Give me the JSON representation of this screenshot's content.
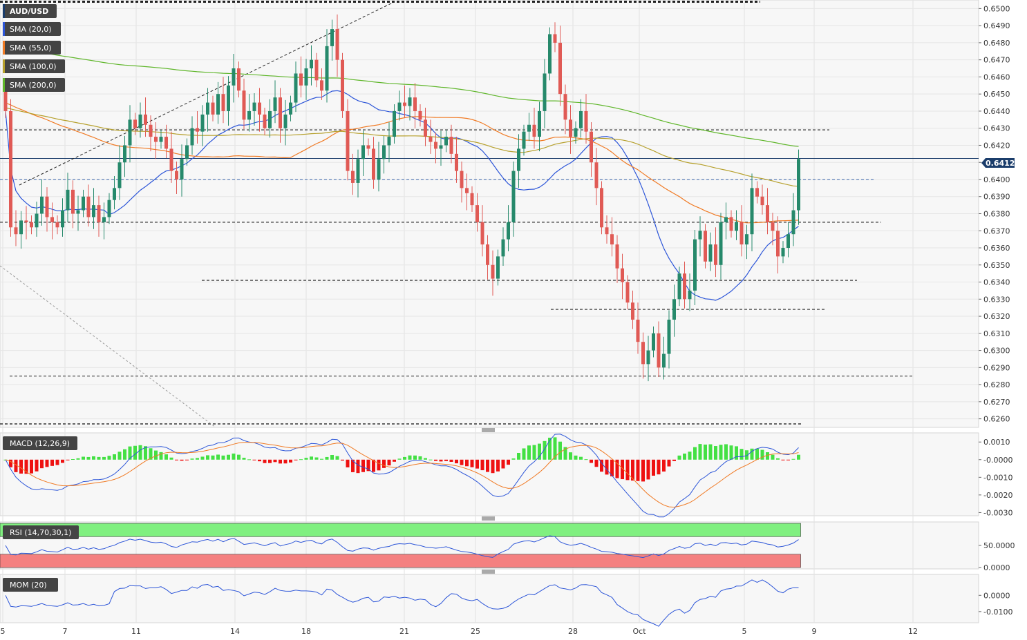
{
  "symbol": "AUD/USD",
  "current_price_label": "0.64123",
  "indicators": {
    "sma": [
      "SMA (20,0)",
      "SMA (55,0)",
      "SMA (100,0)",
      "SMA (200,0)"
    ],
    "macd": "MACD (12,26,9)",
    "rsi": "RSI (14,70,30,1)",
    "mom": "MOM (20)"
  },
  "colors": {
    "up": "#26896b",
    "down": "#e05a55",
    "sma20": "#2c55d8",
    "sma55": "#f07a24",
    "sma100": "#b6a02c",
    "sma200": "#5fb62a",
    "macd_pos": "#44e044",
    "macd_neg": "#ee1111",
    "rsi_over": "#80f080",
    "rsi_under": "#f48080",
    "price_tag": "#1b3d6b"
  },
  "chart_data": [
    {
      "type": "candlestick",
      "panel": "price",
      "title": "AUD/USD",
      "x_tick_labels": [
        "5",
        "7",
        "11",
        "14",
        "18",
        "21",
        "25",
        "28",
        "Oct",
        "5",
        "9",
        "12"
      ],
      "y_tick_labels": [
        "0.6500",
        "0.6490",
        "0.6480",
        "0.6470",
        "0.6460",
        "0.6450",
        "0.6440",
        "0.6430",
        "0.6420",
        "0.6410",
        "0.6400",
        "0.6390",
        "0.6380",
        "0.6370",
        "0.6360",
        "0.6350",
        "0.6340",
        "0.6330",
        "0.6320",
        "0.6310",
        "0.6300",
        "0.6290",
        "0.6280",
        "0.6270",
        "0.6260"
      ],
      "ylim": [
        0.6255,
        0.6505
      ],
      "last_price": 0.64123,
      "horizontal_levels": [
        0.6504,
        0.6429,
        0.64,
        0.6375,
        0.6341,
        0.6324,
        0.6285,
        0.6257
      ],
      "close_series": [
        0.644,
        0.6372,
        0.6368,
        0.6376,
        0.6375,
        0.6372,
        0.638,
        0.639,
        0.6378,
        0.6375,
        0.6372,
        0.6382,
        0.6394,
        0.638,
        0.6382,
        0.639,
        0.6378,
        0.6385,
        0.6375,
        0.6378,
        0.6388,
        0.6395,
        0.641,
        0.642,
        0.6435,
        0.643,
        0.6438,
        0.6432,
        0.6425,
        0.6422,
        0.6425,
        0.6418,
        0.6405,
        0.64,
        0.6412,
        0.642,
        0.643,
        0.6428,
        0.6438,
        0.6445,
        0.6438,
        0.645,
        0.644,
        0.6455,
        0.6465,
        0.6452,
        0.6435,
        0.644,
        0.6445,
        0.6438,
        0.643,
        0.644,
        0.6448,
        0.643,
        0.6438,
        0.6445,
        0.6462,
        0.6455,
        0.6465,
        0.647,
        0.6458,
        0.6452,
        0.6478,
        0.6488,
        0.647,
        0.644,
        0.6405,
        0.6398,
        0.6412,
        0.642,
        0.6418,
        0.64,
        0.6412,
        0.642,
        0.6425,
        0.644,
        0.6445,
        0.6443,
        0.6448,
        0.644,
        0.6435,
        0.6425,
        0.6422,
        0.6418,
        0.642,
        0.6425,
        0.6415,
        0.6405,
        0.6395,
        0.6392,
        0.6385,
        0.6375,
        0.6362,
        0.635,
        0.6342,
        0.6355,
        0.6365,
        0.6375,
        0.6405,
        0.6418,
        0.6428,
        0.6432,
        0.6425,
        0.644,
        0.6462,
        0.6485,
        0.648,
        0.645,
        0.6435,
        0.6425,
        0.643,
        0.644,
        0.6428,
        0.641,
        0.6395,
        0.6372,
        0.6368,
        0.6362,
        0.6348,
        0.634,
        0.6328,
        0.6318,
        0.6305,
        0.6292,
        0.63,
        0.631,
        0.629,
        0.6298,
        0.6318,
        0.633,
        0.6345,
        0.633,
        0.6335,
        0.6365,
        0.637,
        0.6352,
        0.6362,
        0.635,
        0.6375,
        0.6378,
        0.637,
        0.6375,
        0.6362,
        0.6368,
        0.6395,
        0.639,
        0.6385,
        0.6375,
        0.637,
        0.6355,
        0.636,
        0.6368,
        0.6382,
        0.6412
      ]
    },
    {
      "type": "bar+line",
      "panel": "macd",
      "title": "MACD (12,26,9)",
      "y_tick_labels": [
        "0.0010",
        "-0.0000",
        "-0.0010",
        "-0.0020",
        "-0.0030"
      ],
      "ylim": [
        -0.0031,
        0.0014
      ]
    },
    {
      "type": "line",
      "panel": "rsi",
      "title": "RSI (14,70,30,1)",
      "y_tick_labels": [
        "50.0000",
        "0.0000"
      ],
      "ylim": [
        0,
        100
      ],
      "overbought": 70,
      "oversold": 30
    },
    {
      "type": "line",
      "panel": "mom",
      "title": "MOM (20)",
      "y_tick_labels": [
        "0.0000",
        "-0.0100"
      ],
      "ylim": [
        -0.016,
        0.012
      ]
    }
  ]
}
